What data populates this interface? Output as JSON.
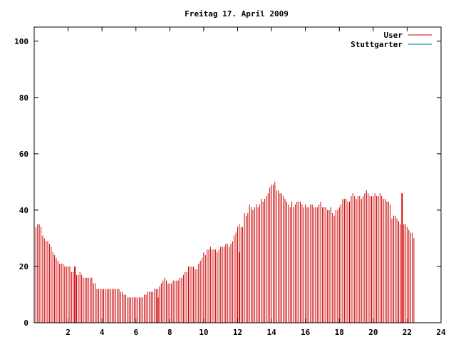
{
  "chart_data": {
    "type": "bar",
    "title": "Freitag 17. April 2009",
    "xlabel": "",
    "ylabel": "",
    "xlim": [
      0,
      24
    ],
    "ylim": [
      0,
      105
    ],
    "xticks": [
      2,
      4,
      6,
      8,
      10,
      12,
      14,
      16,
      18,
      20,
      22,
      24
    ],
    "yticks": [
      0,
      20,
      40,
      60,
      80,
      100
    ],
    "grid": false,
    "legend_position": "top-right",
    "series": [
      {
        "name": "User",
        "color": "#cc0000",
        "x_start": 0,
        "x_step": 0.1,
        "values": [
          37,
          34,
          35,
          35,
          34,
          31,
          30,
          29,
          29,
          28,
          27,
          25,
          24,
          23,
          22,
          21,
          21,
          21,
          20,
          20,
          20,
          20,
          18,
          18,
          17,
          17,
          17,
          18,
          17,
          16,
          16,
          16,
          16,
          16,
          16,
          14,
          14,
          12,
          12,
          12,
          12,
          12,
          12,
          12,
          12,
          12,
          12,
          12,
          12,
          12,
          12,
          11,
          11,
          10,
          10,
          9,
          9,
          9,
          9,
          9,
          9,
          9,
          9,
          9,
          9,
          10,
          10,
          11,
          11,
          11,
          11,
          12,
          12,
          12,
          13,
          14,
          15,
          16,
          15,
          14,
          14,
          14,
          15,
          15,
          15,
          15,
          16,
          16,
          17,
          18,
          18,
          20,
          20,
          20,
          20,
          19,
          19,
          21,
          22,
          23,
          25,
          24,
          26,
          26,
          27,
          26,
          26,
          26,
          25,
          26,
          27,
          27,
          27,
          28,
          28,
          27,
          28,
          29,
          31,
          32,
          34,
          35,
          34,
          34,
          39,
          38,
          39,
          42,
          41,
          40,
          41,
          42,
          41,
          42,
          44,
          43,
          44,
          45,
          46,
          48,
          49,
          49,
          50,
          47,
          47,
          46,
          46,
          45,
          44,
          43,
          42,
          41,
          43,
          41,
          42,
          43,
          43,
          43,
          42,
          41,
          42,
          41,
          41,
          42,
          42,
          41,
          41,
          41,
          42,
          43,
          41,
          41,
          41,
          40,
          40,
          41,
          39,
          38,
          40,
          40,
          41,
          42,
          44,
          44,
          44,
          43,
          43,
          45,
          46,
          45,
          44,
          45,
          45,
          44,
          45,
          46,
          47,
          46,
          45,
          45,
          45,
          46,
          45,
          45,
          46,
          45,
          44,
          44,
          43,
          43,
          42,
          37,
          38,
          38,
          37,
          36,
          35,
          35,
          35,
          35,
          34,
          33,
          32,
          32,
          30
        ]
      },
      {
        "name": "Stuttgarter",
        "color": "#008080",
        "values": []
      }
    ],
    "highlight_bars": [
      {
        "x": 2.4,
        "value": 20
      },
      {
        "x": 7.3,
        "value": 9
      },
      {
        "x": 12.1,
        "value": 25
      },
      {
        "x": 21.7,
        "value": 46
      }
    ]
  }
}
